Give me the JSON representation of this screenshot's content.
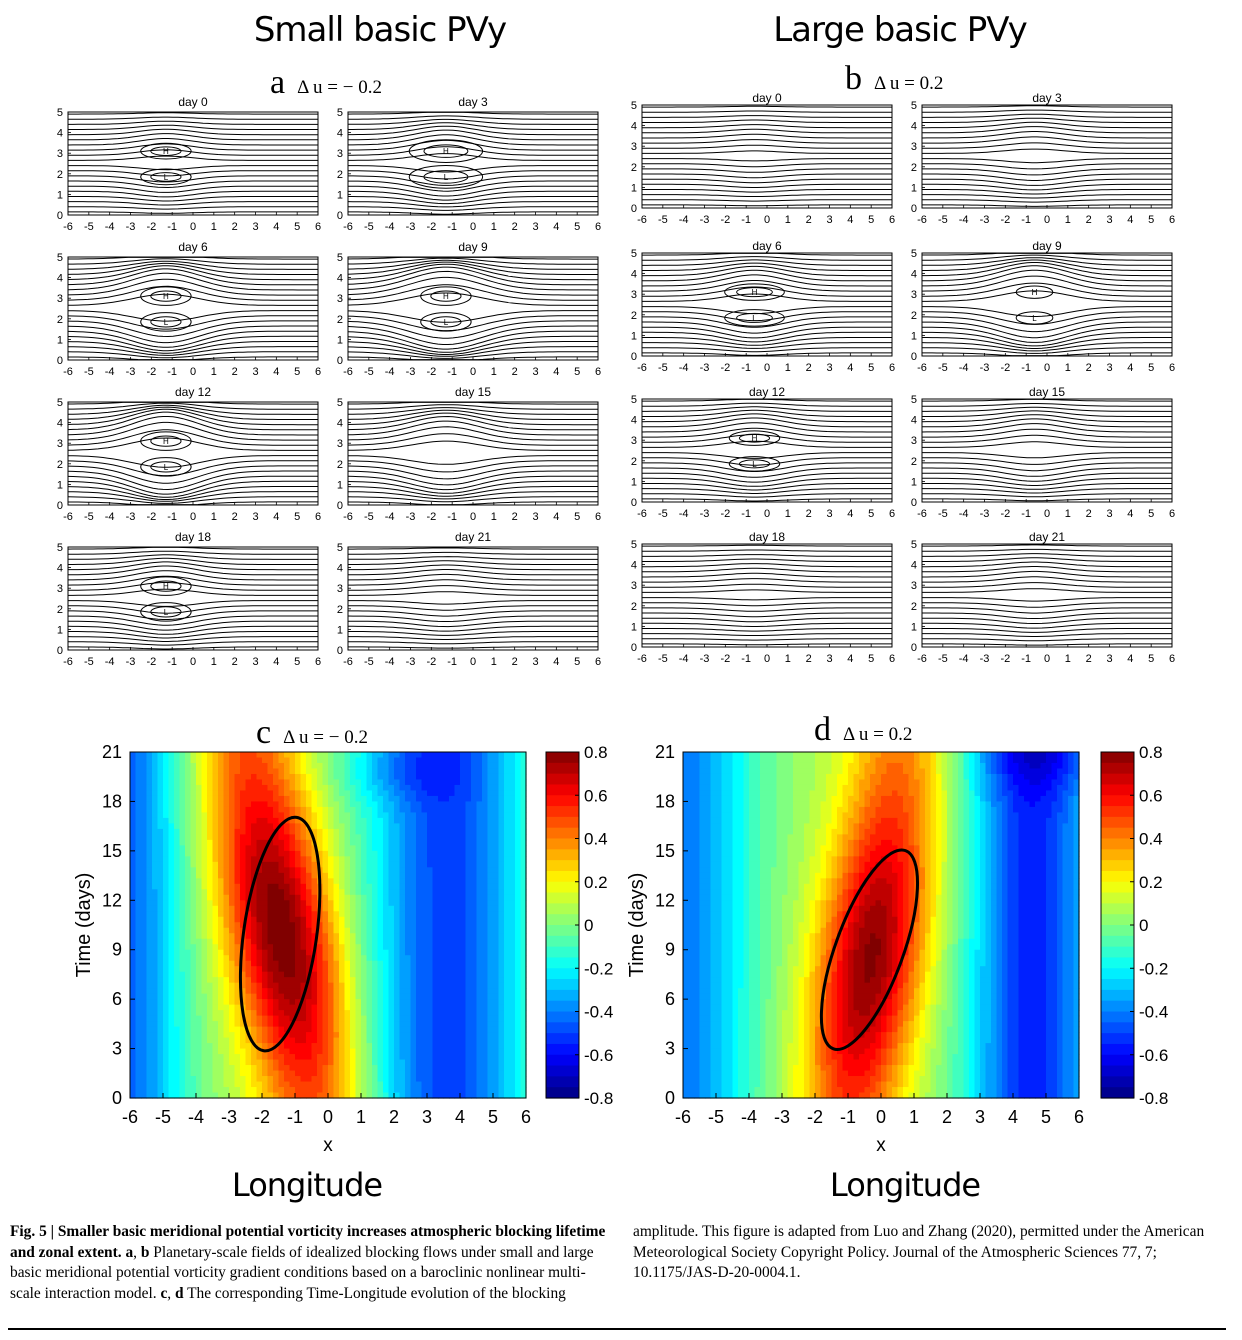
{
  "columns": {
    "left_title": "Small basic PVy",
    "right_title": "Large basic PVy"
  },
  "panels": {
    "a": {
      "letter": "a",
      "delta": "Δ u = − 0.2"
    },
    "b": {
      "letter": "b",
      "delta": "Δ u = 0.2"
    },
    "c": {
      "letter": "c",
      "delta": "Δ u = − 0.2"
    },
    "d": {
      "letter": "d",
      "delta": "Δ u = 0.2"
    }
  },
  "small_panel": {
    "days": [
      "day 0",
      "day 3",
      "day 6",
      "day 9",
      "day 12",
      "day 15",
      "day 18",
      "day 21"
    ],
    "x_ticks": [
      "-6",
      "-5",
      "-4",
      "-3",
      "-2",
      "-1",
      "0",
      "1",
      "2",
      "3",
      "4",
      "5",
      "6"
    ],
    "y_ticks": [
      "0",
      "1",
      "2",
      "3",
      "4",
      "5"
    ],
    "high_label": "H",
    "low_label": "L"
  },
  "chart_data": [
    {
      "type": "heatmap",
      "panel": "c",
      "xlabel": "x",
      "ylabel": "Time (days)",
      "xlim": [
        -6,
        6
      ],
      "ylim": [
        0,
        21
      ],
      "x_ticks": [
        "-6",
        "-5",
        "-4",
        "-3",
        "-2",
        "-1",
        "0",
        "1",
        "2",
        "3",
        "4",
        "5",
        "6"
      ],
      "y_ticks": [
        "0",
        "3",
        "6",
        "9",
        "12",
        "15",
        "18",
        "21"
      ],
      "colorbar": {
        "min": -0.8,
        "max": 0.8,
        "ticks": [
          "0.8",
          "0.6",
          "0.4",
          "0.2",
          "0",
          "-0.2",
          "-0.4",
          "-0.6",
          "-0.8"
        ]
      },
      "max_amplitude": {
        "x": -1.4,
        "t": 10,
        "value": 0.68
      },
      "bold_contour_span": {
        "x": [
          -2.8,
          -0.1
        ],
        "t": [
          2.8,
          17.1
        ]
      }
    },
    {
      "type": "heatmap",
      "panel": "d",
      "xlabel": "x",
      "ylabel": "Time (days)",
      "xlim": [
        -6,
        6
      ],
      "ylim": [
        0,
        21
      ],
      "x_ticks": [
        "-6",
        "-5",
        "-4",
        "-3",
        "-2",
        "-1",
        "0",
        "1",
        "2",
        "3",
        "4",
        "5",
        "6"
      ],
      "y_ticks": [
        "0",
        "3",
        "6",
        "9",
        "12",
        "15",
        "18",
        "21"
      ],
      "colorbar": {
        "min": -0.8,
        "max": 0.8,
        "ticks": [
          "0.8",
          "0.6",
          "0.4",
          "0.2",
          "0",
          "-0.2",
          "-0.4",
          "-0.6",
          "-0.8"
        ]
      },
      "max_amplitude": {
        "x": -0.3,
        "t": 8.5,
        "value": 0.66
      },
      "bold_contour_span": {
        "x": [
          -1.6,
          0.9
        ],
        "t": [
          2.6,
          15.4
        ]
      }
    }
  ],
  "bottom_labels": {
    "left": "Longitude",
    "right": "Longitude"
  },
  "caption": {
    "fig_label": "Fig. 5 | Smaller basic meridional potential vorticity increases atmospheric blocking lifetime and zonal extent.",
    "a": "a",
    "comma": ", ",
    "b": "b",
    "text1": " Planetary-scale fields of idealized blocking flows under small and large basic meridional potential vorticity gradient conditions based on a baroclinic nonlinear multi-scale interaction model. ",
    "c": "c",
    "d": "d",
    "text2": " The corresponding Time-Longitude evolution of the blocking amplitude. This figure is adapted from Luo and Zhang (2020), permitted under the American Meteorological Society Copyright Policy. Journal of the Atmospheric Sciences 77, 7; 10.1175/JAS-D-20-0004.1."
  }
}
